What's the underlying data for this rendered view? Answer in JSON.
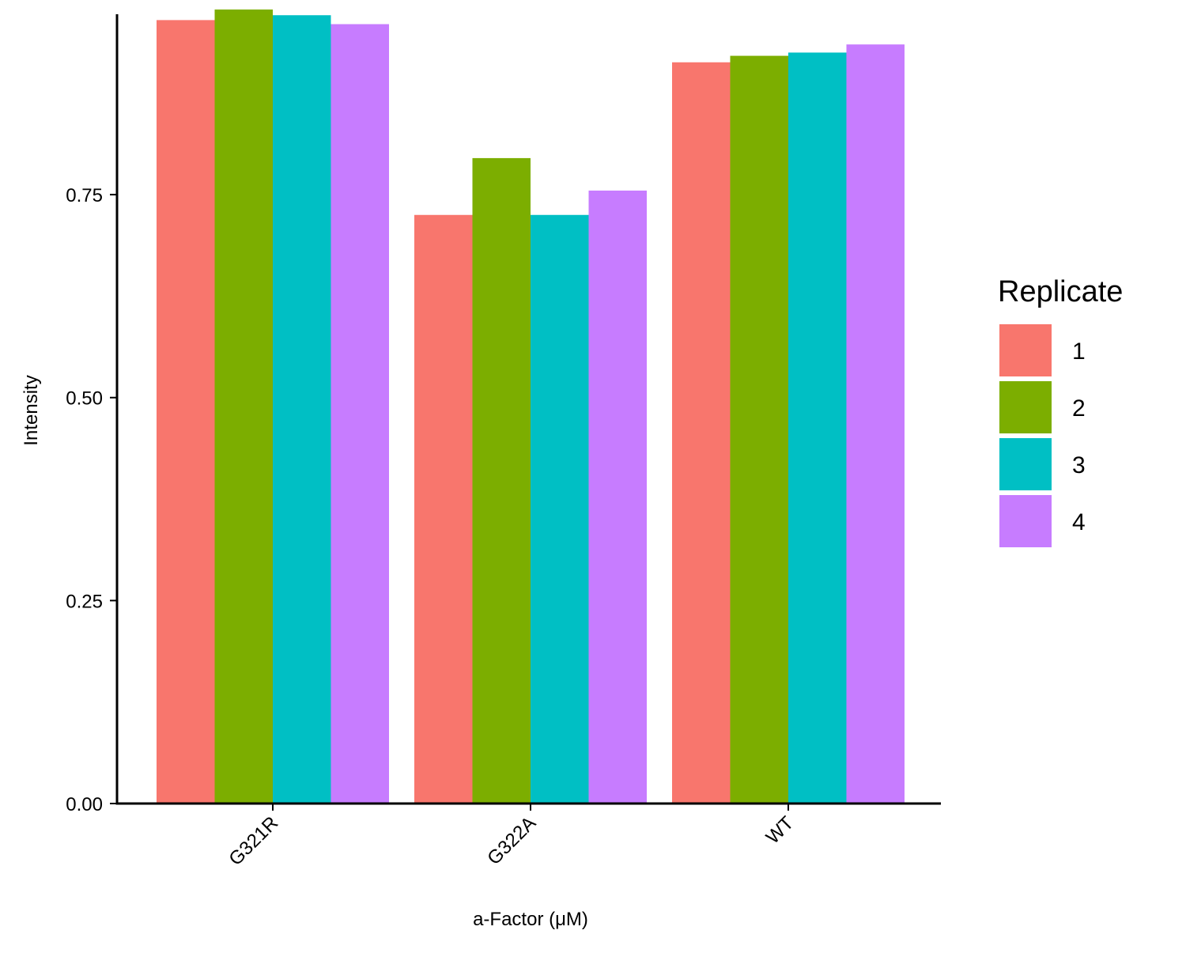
{
  "chart_data": {
    "type": "bar",
    "categories": [
      "G321R",
      "G322A",
      "WT"
    ],
    "series": [
      {
        "name": "1",
        "color": "#F8766D",
        "values": [
          0.965,
          0.725,
          0.913
        ]
      },
      {
        "name": "2",
        "color": "#7CAE00",
        "values": [
          0.978,
          0.795,
          0.921
        ]
      },
      {
        "name": "3",
        "color": "#00BFC4",
        "values": [
          0.971,
          0.725,
          0.925
        ]
      },
      {
        "name": "4",
        "color": "#C77CFF",
        "values": [
          0.96,
          0.755,
          0.935
        ]
      }
    ],
    "xlabel": "a-Factor (μM)",
    "ylabel": "Intensity",
    "ylim": [
      0,
      0.98
    ],
    "yticks": [
      {
        "value": 0,
        "label": "0.00"
      },
      {
        "value": 0.25,
        "label": "0.25"
      },
      {
        "value": 0.5,
        "label": "0.50"
      },
      {
        "value": 0.75,
        "label": "0.75"
      }
    ],
    "legend": {
      "title": "Replicate",
      "position": "right"
    },
    "grid": false
  }
}
